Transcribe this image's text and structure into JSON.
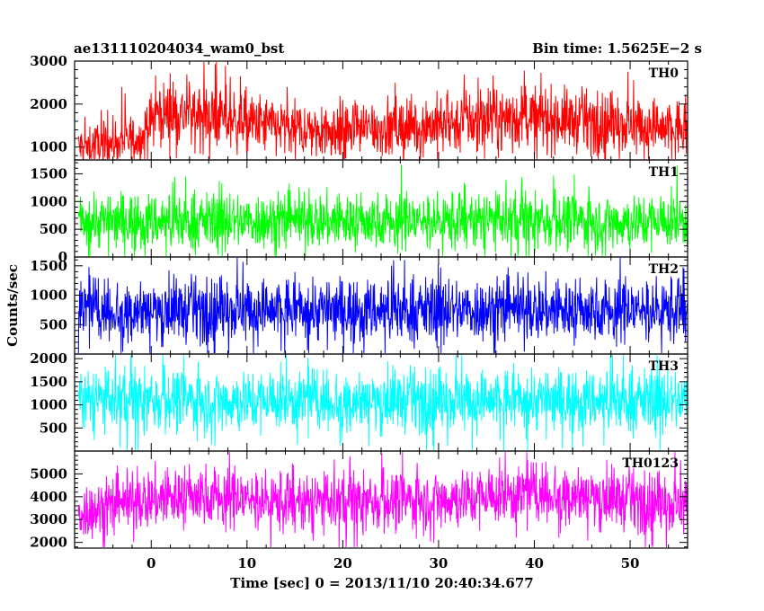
{
  "header": {
    "title": "ae131110204034_wam0_bst",
    "bin_time": "Bin time: 1.5625E−2 s"
  },
  "axes": {
    "ylabel": "Counts/sec",
    "xlabel": "Time [sec] 0 = 2013/11/10 20:40:34.677"
  },
  "chart_data": {
    "type": "line",
    "x_range": [
      -8,
      56
    ],
    "x_ticks": [
      0,
      10,
      20,
      30,
      40,
      50
    ],
    "x_tick_labels": [
      "0",
      "10",
      "20",
      "30",
      "40",
      "50"
    ],
    "panels": [
      {
        "name": "TH0",
        "color": "#ff0000",
        "ylim": [
          700,
          3000
        ],
        "yticks": [
          1000,
          2000,
          3000
        ],
        "ytick_labels": [
          "1000",
          "2000",
          "3000"
        ],
        "profile": [
          {
            "t": -7.5,
            "mean": 1000,
            "spread": 450
          },
          {
            "t": -1.0,
            "mean": 1200,
            "spread": 500
          },
          {
            "t": 0.5,
            "mean": 1800,
            "spread": 650
          },
          {
            "t": 5.0,
            "mean": 1750,
            "spread": 650
          },
          {
            "t": 15.0,
            "mean": 1400,
            "spread": 600
          },
          {
            "t": 25.0,
            "mean": 1450,
            "spread": 600
          },
          {
            "t": 40.0,
            "mean": 1700,
            "spread": 650
          },
          {
            "t": 56.0,
            "mean": 1400,
            "spread": 600
          }
        ]
      },
      {
        "name": "TH1",
        "color": "#00ff00",
        "ylim": [
          0,
          1750
        ],
        "yticks": [
          0,
          500,
          1000,
          1500
        ],
        "ytick_labels": [
          "0",
          "500",
          "1000",
          "1500"
        ],
        "profile": [
          {
            "t": -7.5,
            "mean": 650,
            "spread": 450
          },
          {
            "t": 56.0,
            "mean": 650,
            "spread": 450
          }
        ]
      },
      {
        "name": "TH2",
        "color": "#0000ff",
        "ylim": [
          0,
          1650
        ],
        "yticks": [
          500,
          1000,
          1500
        ],
        "ytick_labels": [
          "500",
          "1000",
          "1500"
        ],
        "profile": [
          {
            "t": -7.5,
            "mean": 750,
            "spread": 480
          },
          {
            "t": 56.0,
            "mean": 750,
            "spread": 480
          }
        ]
      },
      {
        "name": "TH3",
        "color": "#00ffff",
        "ylim": [
          0,
          2100
        ],
        "yticks": [
          500,
          1000,
          1500,
          2000
        ],
        "ytick_labels": [
          "500",
          "1000",
          "1500",
          "2000"
        ],
        "profile": [
          {
            "t": -7.5,
            "mean": 1100,
            "spread": 600
          },
          {
            "t": 56.0,
            "mean": 1100,
            "spread": 600
          }
        ]
      },
      {
        "name": "TH0123",
        "color": "#ff00ff",
        "ylim": [
          1750,
          6000
        ],
        "yticks": [
          2000,
          3000,
          4000,
          5000
        ],
        "ytick_labels": [
          "2000",
          "3000",
          "4000",
          "5000"
        ],
        "profile": [
          {
            "t": -7.5,
            "mean": 3300,
            "spread": 1100
          },
          {
            "t": 0.0,
            "mean": 3900,
            "spread": 1200
          },
          {
            "t": 5.0,
            "mean": 4100,
            "spread": 1200
          },
          {
            "t": 15.0,
            "mean": 3700,
            "spread": 1150
          },
          {
            "t": 25.0,
            "mean": 3800,
            "spread": 1150
          },
          {
            "t": 42.0,
            "mean": 4200,
            "spread": 1200
          },
          {
            "t": 56.0,
            "mean": 3600,
            "spread": 1150
          }
        ]
      }
    ]
  }
}
